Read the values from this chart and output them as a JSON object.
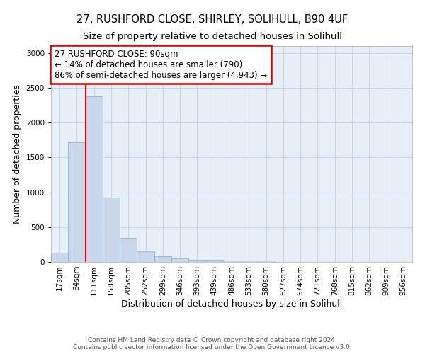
{
  "title": "27, RUSHFORD CLOSE, SHIRLEY, SOLIHULL, B90 4UF",
  "subtitle": "Size of property relative to detached houses in Solihull",
  "xlabel": "Distribution of detached houses by size in Solihull",
  "ylabel": "Number of detached properties",
  "footer_line1": "Contains HM Land Registry data © Crown copyright and database right 2024.",
  "footer_line2": "Contains public sector information licensed under the Open Government Licence v3.0.",
  "categories": [
    "17sqm",
    "64sqm",
    "111sqm",
    "158sqm",
    "205sqm",
    "252sqm",
    "299sqm",
    "346sqm",
    "393sqm",
    "439sqm",
    "486sqm",
    "533sqm",
    "580sqm",
    "627sqm",
    "674sqm",
    "721sqm",
    "768sqm",
    "815sqm",
    "862sqm",
    "909sqm",
    "956sqm"
  ],
  "values": [
    130,
    1720,
    2380,
    920,
    350,
    155,
    85,
    55,
    35,
    35,
    25,
    25,
    20,
    0,
    0,
    0,
    0,
    0,
    0,
    0,
    0
  ],
  "bar_color": "#c8d8ea",
  "bar_edge_color": "#7aaac8",
  "bar_edge_width": 0.5,
  "grid_color": "#c5d5e8",
  "background_color": "#e8eef8",
  "red_line_x": 1.5,
  "annotation_title": "27 RUSHFORD CLOSE: 90sqm",
  "annotation_line2": "← 14% of detached houses are smaller (790)",
  "annotation_line3": "86% of semi-detached houses are larger (4,943) →",
  "annotation_box_color": "#cc0000",
  "ylim": [
    0,
    3100
  ],
  "yticks": [
    0,
    500,
    1000,
    1500,
    2000,
    2500,
    3000
  ],
  "title_fontsize": 10.5,
  "subtitle_fontsize": 9.5,
  "axis_label_fontsize": 9,
  "tick_fontsize": 7.5,
  "annotation_fontsize": 8.5
}
